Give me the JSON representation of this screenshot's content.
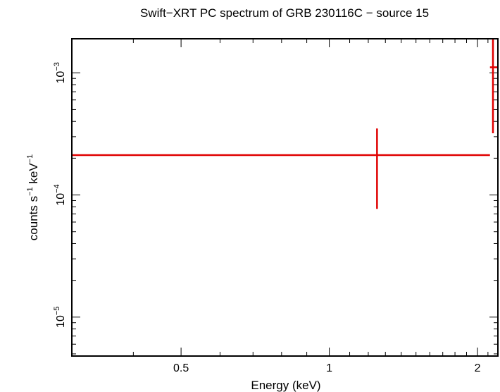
{
  "chart_data": {
    "type": "scatter",
    "title": "Swift−XRT PC spectrum of GRB 230116C − source 15",
    "xlabel": "Energy (keV)",
    "ylabel": {
      "prefix": "counts s",
      "exp1": "−1",
      "mid": " keV",
      "exp2": "−1"
    },
    "x_scale": "log",
    "y_scale": "log",
    "xlim": [
      0.3,
      2.2
    ],
    "ylim": [
      4.8e-06,
      0.0019
    ],
    "x_ticks": [
      {
        "value": 0.5,
        "label": "0.5"
      },
      {
        "value": 1,
        "label": "1"
      },
      {
        "value": 2,
        "label": "2"
      }
    ],
    "y_ticks": [
      {
        "value": 1e-05,
        "base": "10",
        "exp": "−5"
      },
      {
        "value": 0.0001,
        "base": "10",
        "exp": "−4"
      },
      {
        "value": 0.001,
        "base": "10",
        "exp": "−3"
      }
    ],
    "grid": false,
    "series": [
      {
        "color": "#e00000",
        "points": [
          {
            "x": 1.25,
            "x_low": 0.3,
            "x_high": 2.12,
            "y": 0.000212,
            "y_low": 7.7e-05,
            "y_high": 0.00035
          },
          {
            "x": 2.15,
            "x_low": 2.12,
            "x_high": 2.2,
            "y": 0.00111,
            "y_low": 0.00032,
            "y_high": 0.0019
          }
        ]
      }
    ]
  }
}
